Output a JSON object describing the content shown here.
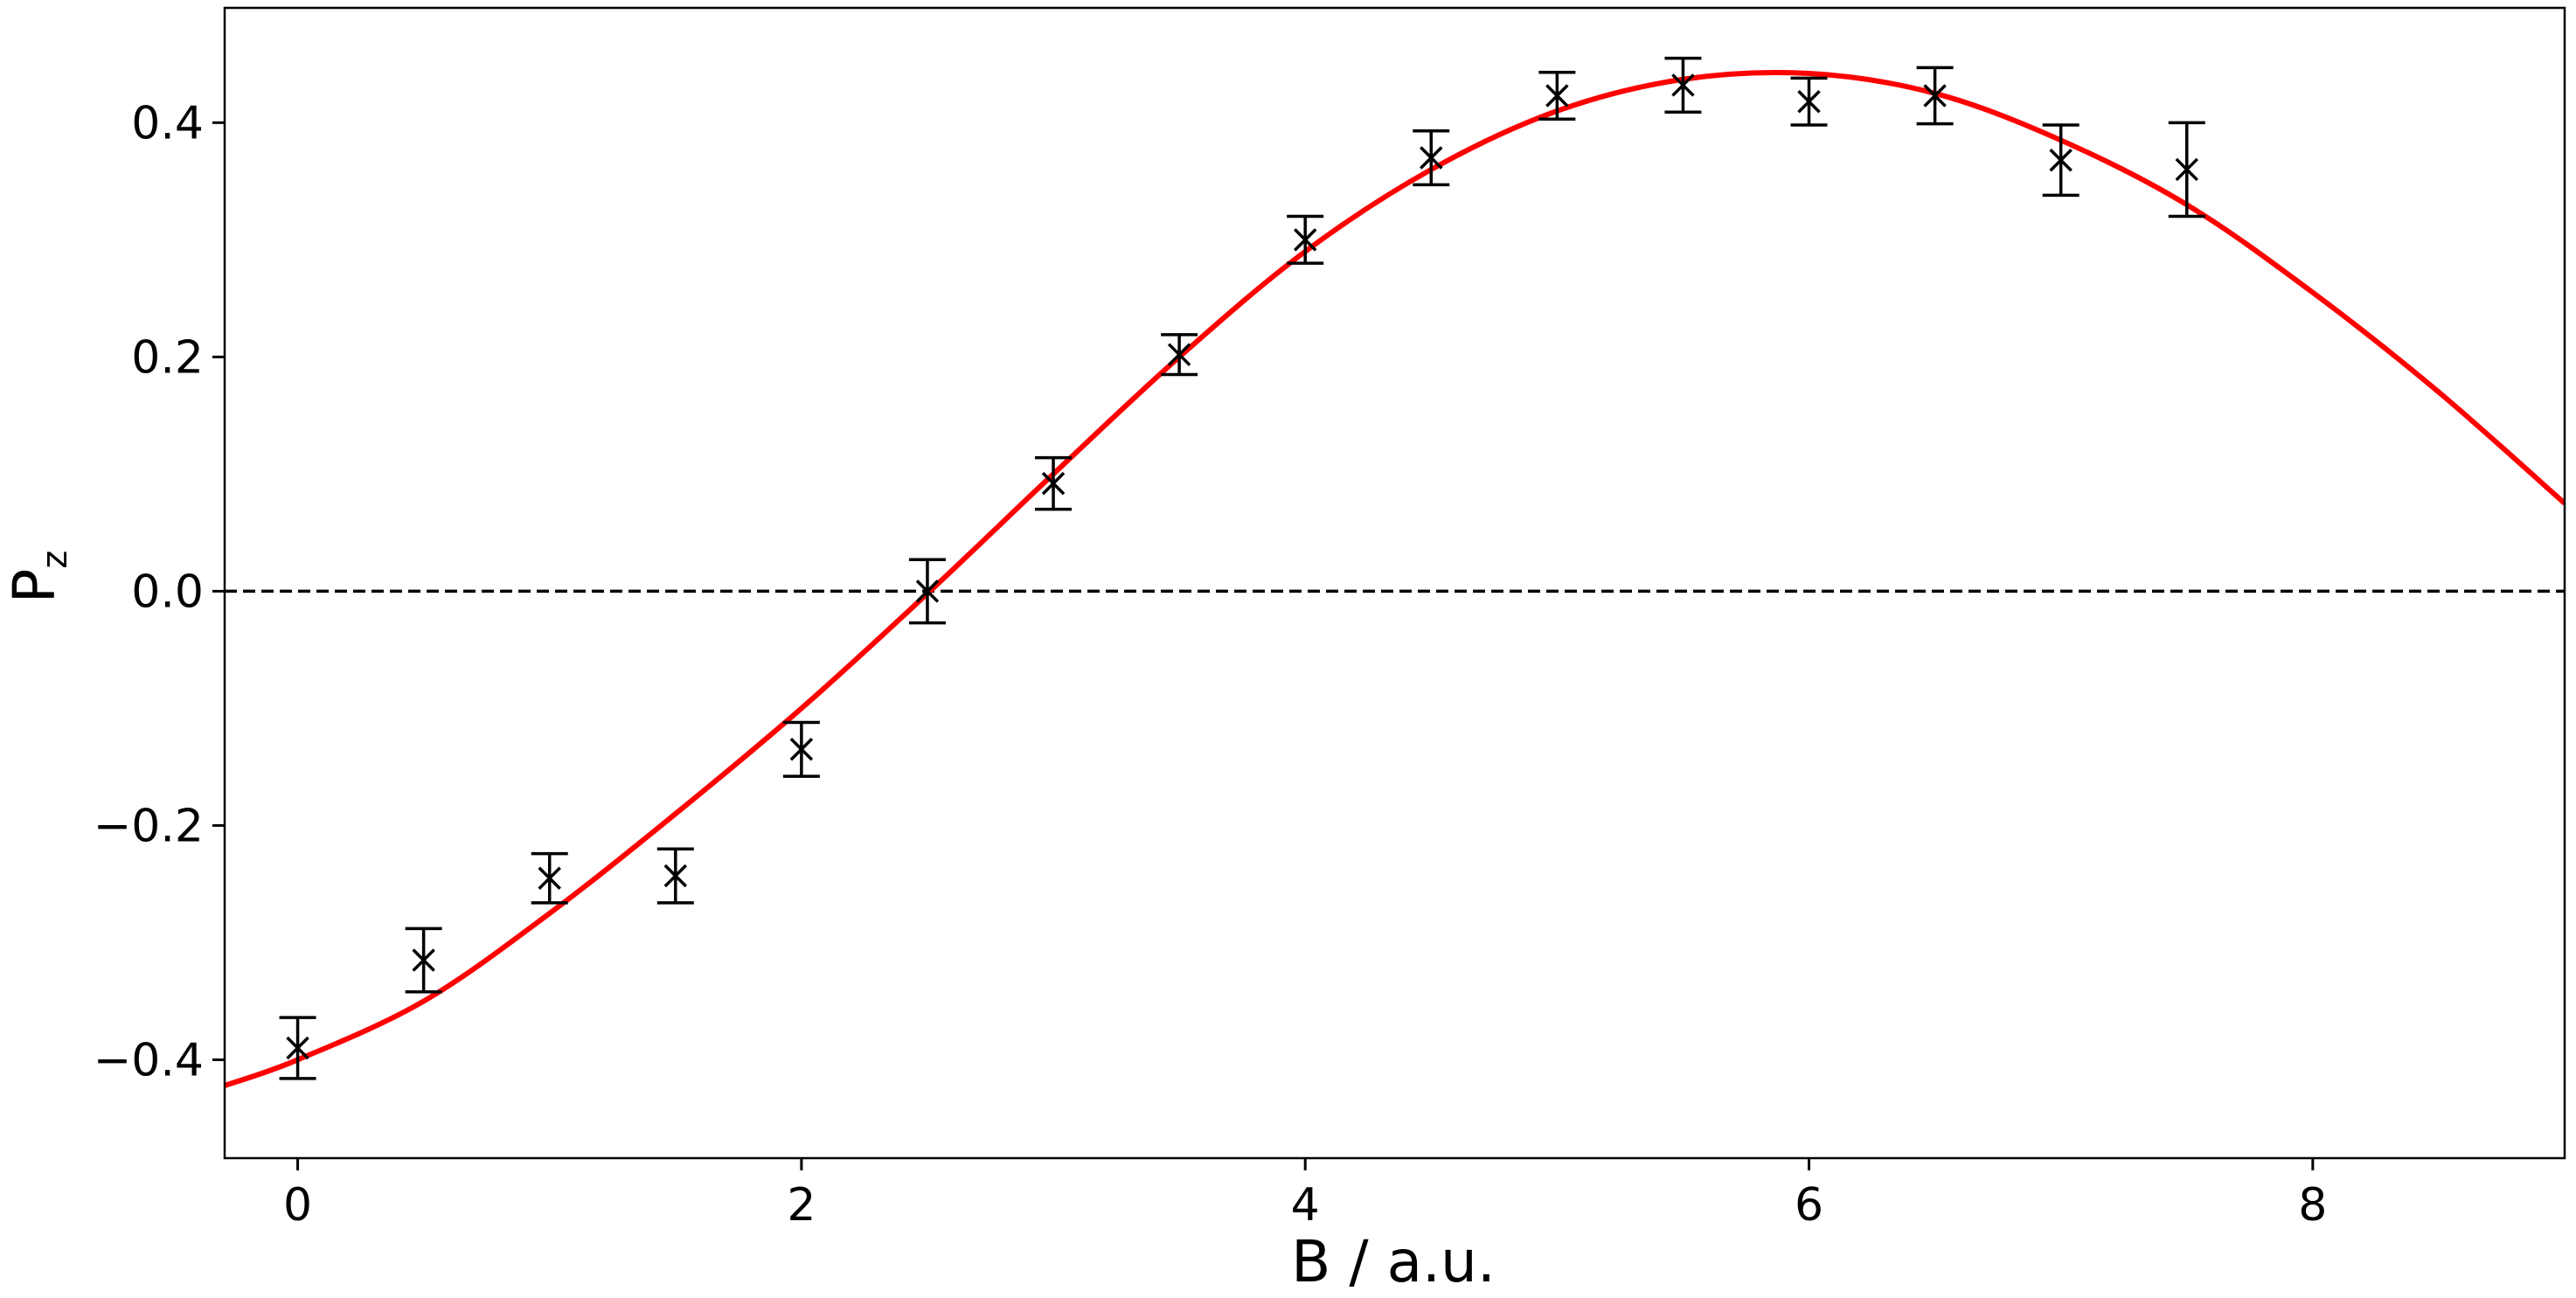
{
  "chart_data": {
    "type": "scatter",
    "x_label": "B / a.u.",
    "y_label": "P",
    "y_label_subscript": "z",
    "xlim": [
      -0.29,
      9.0
    ],
    "ylim": [
      -0.484,
      0.498
    ],
    "xticks": [
      0,
      2,
      4,
      6,
      8
    ],
    "yticks": [
      {
        "value": -0.4,
        "label": "−0.4"
      },
      {
        "value": -0.2,
        "label": "−0.2"
      },
      {
        "value": 0.0,
        "label": "0.0"
      },
      0.2,
      0.4
    ],
    "series": [
      {
        "marker": "x",
        "color": "#000000",
        "x": [
          0,
          0.5,
          1,
          1.5,
          2,
          2.5,
          3,
          3.5,
          4,
          4.5,
          5,
          5.5,
          6,
          6.5,
          7,
          7.5
        ],
        "values": [
          -0.39,
          -0.315,
          -0.245,
          -0.243,
          -0.135,
          0.0,
          0.092,
          0.202,
          0.3,
          0.37,
          0.423,
          0.432,
          0.418,
          0.423,
          0.368,
          0.36
        ],
        "errors": [
          0.026,
          0.027,
          0.021,
          0.023,
          0.023,
          0.027,
          0.022,
          0.017,
          0.02,
          0.023,
          0.02,
          0.023,
          0.02,
          0.024,
          0.03,
          0.04
        ]
      }
    ],
    "fit": {
      "color": "#ff0000",
      "x": [
        -0.29,
        0,
        0.5,
        1,
        1.5,
        2,
        2.5,
        3,
        3.5,
        4,
        4.5,
        5,
        5.5,
        6,
        6.5,
        7,
        7.5,
        8,
        8.5,
        9
      ],
      "values": [
        -0.422,
        -0.4,
        -0.35,
        -0.275,
        -0.19,
        -0.1,
        -0.002,
        0.1,
        0.2,
        0.29,
        0.36,
        0.41,
        0.437,
        0.442,
        0.425,
        0.385,
        0.33,
        0.255,
        0.17,
        0.075
      ]
    },
    "reference_line": {
      "value": 0,
      "color": "#000000",
      "dashed": true
    }
  }
}
